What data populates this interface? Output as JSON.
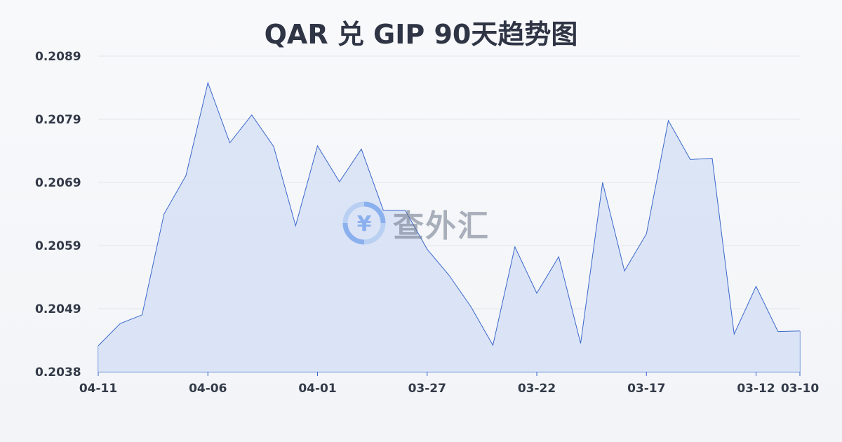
{
  "chart_data": {
    "type": "area",
    "title": "QAR 兑 GIP 90天趋势图",
    "xlabel": "",
    "ylabel": "",
    "ylim": [
      0.2038,
      0.2089
    ],
    "yticks": [
      "0.2038",
      "0.2049",
      "0.2059",
      "0.2069",
      "0.2079",
      "0.2089"
    ],
    "xtick_labels": [
      "04-11",
      "04-06",
      "04-01",
      "03-27",
      "03-22",
      "03-17",
      "03-12",
      "03-10"
    ],
    "grid": true,
    "line_color": "#3a66cc",
    "fill_color": "#d5e0f5",
    "x": [
      "04-11",
      "04-10",
      "04-09",
      "04-08",
      "04-07",
      "04-06",
      "04-05",
      "04-04",
      "04-03",
      "04-02",
      "04-01",
      "03-31",
      "03-30",
      "03-29",
      "03-28",
      "03-27",
      "03-26",
      "03-25",
      "03-24",
      "03-23",
      "03-22",
      "03-21",
      "03-20",
      "03-19",
      "03-18",
      "03-17",
      "03-16",
      "03-15",
      "03-14",
      "03-13",
      "03-12",
      "03-11",
      "03-10"
    ],
    "values": [
      0.20422,
      0.20458,
      0.20472,
      0.20635,
      0.20697,
      0.20847,
      0.2075,
      0.20795,
      0.20744,
      0.20616,
      0.20745,
      0.20687,
      0.2074,
      0.20641,
      0.20641,
      0.20578,
      0.20536,
      0.20485,
      0.20423,
      0.20582,
      0.20507,
      0.20566,
      0.20426,
      0.20686,
      0.20543,
      0.20603,
      0.20786,
      0.20723,
      0.20725,
      0.20441,
      0.20518,
      0.20445,
      0.20446
    ]
  },
  "watermark": {
    "text": "查外汇",
    "icon": "yen-exchange-icon"
  }
}
